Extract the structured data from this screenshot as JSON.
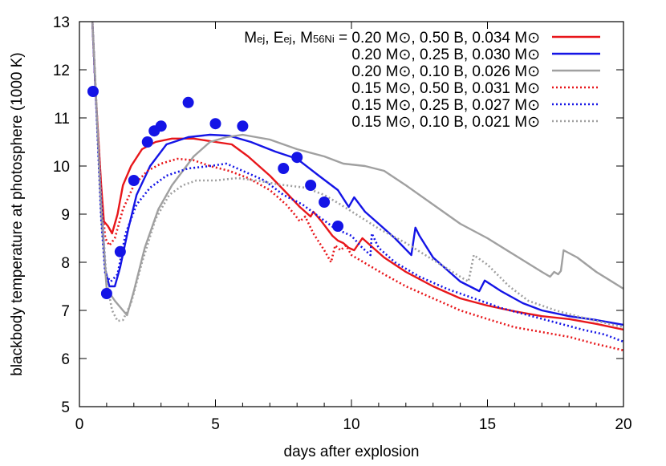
{
  "chart_data": {
    "type": "line",
    "title": "",
    "xlabel": "days after explosion",
    "ylabel": "blackbody temperature at photosphere (1000 K)",
    "xlim": [
      0,
      20
    ],
    "ylim": [
      5,
      13
    ],
    "x_ticks": [
      0,
      5,
      10,
      15,
      20
    ],
    "y_ticks": [
      5,
      6,
      7,
      8,
      9,
      10,
      11,
      12,
      13
    ],
    "x_tick_labels": [
      "0",
      "5",
      "10",
      "15",
      "20"
    ],
    "y_tick_labels": [
      "5",
      "6",
      "7",
      "8",
      "9",
      "10",
      "11",
      "12",
      "13"
    ],
    "grid": false,
    "legend_position": "top-right",
    "legend_header": {
      "m": "M",
      "ej_sub_1": "ej",
      "e": "E",
      "ej_sub_2": "ej",
      "m2": "M",
      "ni_sub": "56Ni",
      "rest": " = 0.20 M⊙, 0.50 B, 0.034 M⊙"
    },
    "series": [
      {
        "name": "0.20 M⊙, 0.50 B, 0.034 M⊙",
        "legend_label": "",
        "color": "#e8161a",
        "dash": "solid",
        "points": [
          [
            0.45,
            13.3
          ],
          [
            0.6,
            11.5
          ],
          [
            0.8,
            9.6
          ],
          [
            0.9,
            8.85
          ],
          [
            1.05,
            8.75
          ],
          [
            1.2,
            8.6
          ],
          [
            1.4,
            9.0
          ],
          [
            1.6,
            9.6
          ],
          [
            1.9,
            10.0
          ],
          [
            2.3,
            10.35
          ],
          [
            2.8,
            10.5
          ],
          [
            3.4,
            10.57
          ],
          [
            4.2,
            10.57
          ],
          [
            5.0,
            10.5
          ],
          [
            5.6,
            10.45
          ],
          [
            6.2,
            10.2
          ],
          [
            7.0,
            9.8
          ],
          [
            7.6,
            9.45
          ],
          [
            8.1,
            9.15
          ],
          [
            8.3,
            9.05
          ],
          [
            8.5,
            8.95
          ],
          [
            8.6,
            9.05
          ],
          [
            8.9,
            8.85
          ],
          [
            9.3,
            8.55
          ],
          [
            9.5,
            8.45
          ],
          [
            9.7,
            8.4
          ],
          [
            9.9,
            8.3
          ],
          [
            10.1,
            8.25
          ],
          [
            10.4,
            8.5
          ],
          [
            10.7,
            8.35
          ],
          [
            11.2,
            8.1
          ],
          [
            12,
            7.8
          ],
          [
            13,
            7.5
          ],
          [
            14,
            7.25
          ],
          [
            15,
            7.1
          ],
          [
            16,
            6.98
          ],
          [
            17,
            6.88
          ],
          [
            18,
            6.82
          ],
          [
            19,
            6.72
          ],
          [
            20,
            6.6
          ]
        ]
      },
      {
        "name": "0.20 M⊙, 0.25 B, 0.030 M⊙",
        "legend_label": "0.20 M⊙, 0.25 B, 0.030 M⊙",
        "color": "#1414e6",
        "dash": "solid",
        "points": [
          [
            0.45,
            13.3
          ],
          [
            0.6,
            11.5
          ],
          [
            0.8,
            9.2
          ],
          [
            0.95,
            7.85
          ],
          [
            1.1,
            7.5
          ],
          [
            1.3,
            7.5
          ],
          [
            1.5,
            7.9
          ],
          [
            1.8,
            8.7
          ],
          [
            2.1,
            9.4
          ],
          [
            2.6,
            10.0
          ],
          [
            3.2,
            10.45
          ],
          [
            4.0,
            10.6
          ],
          [
            4.8,
            10.65
          ],
          [
            5.5,
            10.63
          ],
          [
            6.3,
            10.5
          ],
          [
            7.2,
            10.3
          ],
          [
            8.0,
            10.15
          ],
          [
            8.8,
            9.8
          ],
          [
            9.5,
            9.5
          ],
          [
            9.9,
            9.15
          ],
          [
            10.1,
            9.35
          ],
          [
            10.5,
            9.05
          ],
          [
            11.0,
            8.8
          ],
          [
            11.6,
            8.5
          ],
          [
            12.2,
            8.15
          ],
          [
            12.35,
            8.72
          ],
          [
            12.5,
            8.55
          ],
          [
            13.0,
            8.1
          ],
          [
            14.0,
            7.6
          ],
          [
            14.7,
            7.4
          ],
          [
            14.9,
            7.62
          ],
          [
            15.5,
            7.4
          ],
          [
            16.3,
            7.15
          ],
          [
            17,
            7.0
          ],
          [
            18,
            6.88
          ],
          [
            19,
            6.8
          ],
          [
            20,
            6.7
          ]
        ]
      },
      {
        "name": "0.20 M⊙, 0.10 B, 0.026 M⊙",
        "legend_label": "0.20 M⊙, 0.10 B, 0.026 M⊙",
        "color": "#a0a0a0",
        "dash": "solid",
        "points": [
          [
            0.45,
            13.3
          ],
          [
            0.6,
            11.6
          ],
          [
            0.8,
            9.0
          ],
          [
            1.0,
            7.45
          ],
          [
            1.3,
            7.2
          ],
          [
            1.6,
            7.0
          ],
          [
            1.75,
            6.9
          ],
          [
            2.0,
            7.4
          ],
          [
            2.4,
            8.3
          ],
          [
            2.9,
            9.1
          ],
          [
            3.4,
            9.6
          ],
          [
            4.2,
            10.2
          ],
          [
            4.8,
            10.5
          ],
          [
            5.4,
            10.6
          ],
          [
            6.0,
            10.65
          ],
          [
            7.0,
            10.55
          ],
          [
            8.0,
            10.35
          ],
          [
            9.0,
            10.2
          ],
          [
            9.7,
            10.05
          ],
          [
            10.5,
            10.0
          ],
          [
            11.2,
            9.9
          ],
          [
            12.0,
            9.6
          ],
          [
            13.0,
            9.2
          ],
          [
            14.0,
            8.8
          ],
          [
            15.0,
            8.5
          ],
          [
            16.0,
            8.15
          ],
          [
            17.0,
            7.8
          ],
          [
            17.3,
            7.7
          ],
          [
            17.45,
            7.8
          ],
          [
            17.6,
            7.75
          ],
          [
            17.7,
            7.82
          ],
          [
            17.8,
            8.25
          ],
          [
            18.3,
            8.1
          ],
          [
            19.0,
            7.8
          ],
          [
            20,
            7.45
          ]
        ]
      },
      {
        "name": "0.15 M⊙, 0.50 B, 0.031 M⊙",
        "legend_label": "0.15 M⊙, 0.50 B, 0.031 M⊙",
        "color": "#e8161a",
        "dash": "dotted",
        "points": [
          [
            0.45,
            13.3
          ],
          [
            0.6,
            11.5
          ],
          [
            0.8,
            9.4
          ],
          [
            0.95,
            8.5
          ],
          [
            1.1,
            8.35
          ],
          [
            1.3,
            8.5
          ],
          [
            1.6,
            9.1
          ],
          [
            2.0,
            9.6
          ],
          [
            2.5,
            9.9
          ],
          [
            3.0,
            10.05
          ],
          [
            3.6,
            10.15
          ],
          [
            4.2,
            10.12
          ],
          [
            4.8,
            10.0
          ],
          [
            5.5,
            9.9
          ],
          [
            6.2,
            9.75
          ],
          [
            7.0,
            9.5
          ],
          [
            7.6,
            9.2
          ],
          [
            7.9,
            9.0
          ],
          [
            8.1,
            8.85
          ],
          [
            8.3,
            8.95
          ],
          [
            8.6,
            8.6
          ],
          [
            9.0,
            8.25
          ],
          [
            9.25,
            8.0
          ],
          [
            9.4,
            8.35
          ],
          [
            9.6,
            8.25
          ],
          [
            9.8,
            8.35
          ],
          [
            10.0,
            8.15
          ],
          [
            10.6,
            7.95
          ],
          [
            11.2,
            7.75
          ],
          [
            12,
            7.5
          ],
          [
            13,
            7.25
          ],
          [
            14,
            7.0
          ],
          [
            15,
            6.82
          ],
          [
            16,
            6.65
          ],
          [
            17,
            6.55
          ],
          [
            18,
            6.45
          ],
          [
            19,
            6.3
          ],
          [
            20,
            6.17
          ]
        ]
      },
      {
        "name": "0.15 M⊙, 0.25 B, 0.027 M⊙",
        "legend_label": "0.15 M⊙, 0.25 B, 0.027 M⊙",
        "color": "#1414e6",
        "dash": "dotted",
        "points": [
          [
            0.45,
            13.3
          ],
          [
            0.6,
            11.5
          ],
          [
            0.8,
            8.9
          ],
          [
            0.95,
            7.75
          ],
          [
            1.15,
            7.6
          ],
          [
            1.4,
            7.75
          ],
          [
            1.7,
            8.6
          ],
          [
            2.1,
            9.2
          ],
          [
            2.6,
            9.55
          ],
          [
            3.2,
            9.8
          ],
          [
            4.0,
            9.95
          ],
          [
            4.8,
            10.0
          ],
          [
            5.4,
            10.05
          ],
          [
            6.0,
            9.9
          ],
          [
            6.8,
            9.7
          ],
          [
            7.5,
            9.4
          ],
          [
            8.2,
            9.2
          ],
          [
            8.8,
            8.95
          ],
          [
            9.4,
            8.7
          ],
          [
            10.0,
            8.55
          ],
          [
            10.4,
            8.3
          ],
          [
            10.7,
            8.15
          ],
          [
            10.75,
            8.6
          ],
          [
            11.0,
            8.3
          ],
          [
            11.6,
            8.0
          ],
          [
            12.5,
            7.7
          ],
          [
            13.5,
            7.45
          ],
          [
            14.5,
            7.25
          ],
          [
            15.5,
            7.05
          ],
          [
            16.5,
            6.9
          ],
          [
            17.5,
            6.75
          ],
          [
            18.5,
            6.6
          ],
          [
            19.3,
            6.5
          ],
          [
            20,
            6.35
          ]
        ]
      },
      {
        "name": "0.15 M⊙, 0.10 B, 0.021 M⊙",
        "legend_label": "0.15 M⊙, 0.10 B, 0.021 M⊙",
        "color": "#a0a0a0",
        "dash": "dotted",
        "points": [
          [
            0.45,
            13.3
          ],
          [
            0.6,
            11.6
          ],
          [
            0.8,
            9.3
          ],
          [
            1.0,
            7.6
          ],
          [
            1.2,
            7.0
          ],
          [
            1.4,
            6.78
          ],
          [
            1.6,
            6.8
          ],
          [
            1.9,
            7.15
          ],
          [
            2.3,
            8.0
          ],
          [
            2.8,
            8.9
          ],
          [
            3.3,
            9.4
          ],
          [
            3.8,
            9.6
          ],
          [
            4.3,
            9.7
          ],
          [
            5.0,
            9.7
          ],
          [
            5.8,
            9.75
          ],
          [
            6.5,
            9.7
          ],
          [
            7.3,
            9.62
          ],
          [
            8.3,
            9.55
          ],
          [
            9.0,
            9.4
          ],
          [
            9.6,
            9.2
          ],
          [
            10.3,
            8.95
          ],
          [
            11.0,
            8.7
          ],
          [
            12.0,
            8.4
          ],
          [
            13.0,
            8.05
          ],
          [
            14.0,
            7.7
          ],
          [
            14.3,
            7.6
          ],
          [
            14.5,
            8.15
          ],
          [
            15.0,
            7.95
          ],
          [
            15.8,
            7.5
          ],
          [
            16.5,
            7.2
          ],
          [
            17.5,
            7.0
          ],
          [
            18.5,
            6.85
          ],
          [
            20,
            6.65
          ]
        ]
      }
    ],
    "observed_points": {
      "name": "",
      "color": "#1414e6",
      "points": [
        [
          0.5,
          11.55
        ],
        [
          1.0,
          7.35
        ],
        [
          1.5,
          8.22
        ],
        [
          2.0,
          9.7
        ],
        [
          2.5,
          10.5
        ],
        [
          2.75,
          10.73
        ],
        [
          3.0,
          10.83
        ],
        [
          4.0,
          11.32
        ],
        [
          5.0,
          10.88
        ],
        [
          6.0,
          10.83
        ],
        [
          7.5,
          9.95
        ],
        [
          8.0,
          10.18
        ],
        [
          8.5,
          9.6
        ],
        [
          9.0,
          9.25
        ],
        [
          9.5,
          8.75
        ]
      ]
    }
  }
}
